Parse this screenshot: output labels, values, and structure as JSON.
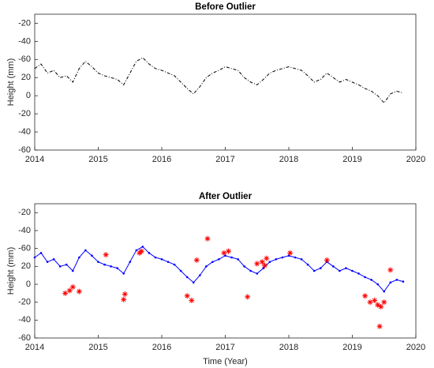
{
  "chart_data": [
    {
      "type": "line",
      "title": "Before Outlier",
      "ylabel": "Height (mm)",
      "xlim": [
        2014,
        2020
      ],
      "xticks": [
        2014,
        2015,
        2016,
        2017,
        2018,
        2019,
        2020
      ],
      "ylim": [
        -60,
        90
      ],
      "yticks": [
        {
          "value": 80,
          "label": "-20"
        },
        {
          "value": 60,
          "label": "-40"
        },
        {
          "value": 40,
          "label": "-60"
        },
        20,
        0,
        -20,
        -40,
        -60
      ],
      "series": [
        {
          "color": "#000000",
          "linestyle": "dashdot",
          "x": [
            2014.0,
            2014.1,
            2014.2,
            2014.3,
            2014.4,
            2014.5,
            2014.6,
            2014.7,
            2014.8,
            2014.9,
            2015.0,
            2015.1,
            2015.2,
            2015.3,
            2015.4,
            2015.5,
            2015.6,
            2015.7,
            2015.8,
            2015.9,
            2016.0,
            2016.1,
            2016.2,
            2016.3,
            2016.4,
            2016.5,
            2016.6,
            2016.7,
            2016.8,
            2016.9,
            2017.0,
            2017.1,
            2017.2,
            2017.3,
            2017.4,
            2017.5,
            2017.6,
            2017.7,
            2017.8,
            2017.9,
            2018.0,
            2018.1,
            2018.2,
            2018.3,
            2018.4,
            2018.5,
            2018.6,
            2018.7,
            2018.8,
            2018.9,
            2019.0,
            2019.1,
            2019.2,
            2019.3,
            2019.4,
            2019.5,
            2019.6,
            2019.7,
            2019.8
          ],
          "values": [
            30,
            35,
            25,
            28,
            20,
            22,
            15,
            30,
            38,
            32,
            25,
            22,
            20,
            18,
            12,
            25,
            38,
            42,
            35,
            30,
            28,
            25,
            22,
            15,
            8,
            2,
            10,
            20,
            25,
            28,
            32,
            30,
            28,
            20,
            15,
            12,
            18,
            25,
            28,
            30,
            32,
            30,
            28,
            22,
            15,
            18,
            25,
            20,
            15,
            18,
            15,
            12,
            8,
            5,
            0,
            -8,
            2,
            5,
            3
          ]
        }
      ]
    },
    {
      "type": "line",
      "title": "After Outlier",
      "ylabel": "Height (mm)",
      "xlabel": "Time (Year)",
      "xlim": [
        2014,
        2020
      ],
      "xticks": [
        2014,
        2015,
        2016,
        2017,
        2018,
        2019,
        2020
      ],
      "ylim": [
        -60,
        90
      ],
      "yticks": [
        {
          "value": 80,
          "label": "-20"
        },
        {
          "value": 60,
          "label": "-40"
        },
        {
          "value": 40,
          "label": "-60"
        },
        20,
        0,
        -20,
        -40,
        -60
      ],
      "series": [
        {
          "color": "#0000ff",
          "marker": "dot",
          "x": [
            2014.0,
            2014.1,
            2014.2,
            2014.3,
            2014.4,
            2014.5,
            2014.6,
            2014.7,
            2014.8,
            2014.9,
            2015.0,
            2015.1,
            2015.2,
            2015.3,
            2015.4,
            2015.5,
            2015.6,
            2015.7,
            2015.8,
            2015.9,
            2016.0,
            2016.1,
            2016.2,
            2016.3,
            2016.4,
            2016.5,
            2016.6,
            2016.7,
            2016.8,
            2016.9,
            2017.0,
            2017.1,
            2017.2,
            2017.3,
            2017.4,
            2017.5,
            2017.6,
            2017.7,
            2017.8,
            2017.9,
            2018.0,
            2018.1,
            2018.2,
            2018.3,
            2018.4,
            2018.5,
            2018.6,
            2018.7,
            2018.8,
            2018.9,
            2019.0,
            2019.1,
            2019.2,
            2019.3,
            2019.4,
            2019.5,
            2019.6,
            2019.7,
            2019.8
          ],
          "values": [
            30,
            35,
            25,
            28,
            20,
            22,
            15,
            30,
            38,
            32,
            25,
            22,
            20,
            18,
            12,
            25,
            38,
            42,
            35,
            30,
            28,
            25,
            22,
            15,
            8,
            2,
            10,
            20,
            25,
            28,
            32,
            30,
            28,
            20,
            15,
            12,
            18,
            25,
            28,
            30,
            32,
            30,
            28,
            22,
            15,
            18,
            25,
            20,
            15,
            18,
            15,
            12,
            8,
            5,
            0,
            -8,
            2,
            5,
            3
          ]
        },
        {
          "color": "#ff0000",
          "marker": "star",
          "x": [
            2014.48,
            2014.55,
            2014.6,
            2014.7,
            2015.12,
            2015.4,
            2015.42,
            2015.65,
            2015.68,
            2016.4,
            2016.47,
            2016.55,
            2016.72,
            2016.98,
            2017.05,
            2017.35,
            2017.5,
            2017.58,
            2017.62,
            2017.65,
            2018.02,
            2018.6,
            2019.2,
            2019.28,
            2019.35,
            2019.4,
            2019.43,
            2019.45,
            2019.5,
            2019.6
          ],
          "values": [
            -10,
            -7,
            -3,
            -8,
            33,
            -17,
            -11,
            35,
            37,
            -13,
            -18,
            27,
            51,
            35,
            37,
            -14,
            23,
            25,
            21,
            29,
            35,
            27,
            -13,
            -20,
            -18,
            -23,
            -47,
            -25,
            -20,
            16
          ]
        }
      ]
    }
  ]
}
